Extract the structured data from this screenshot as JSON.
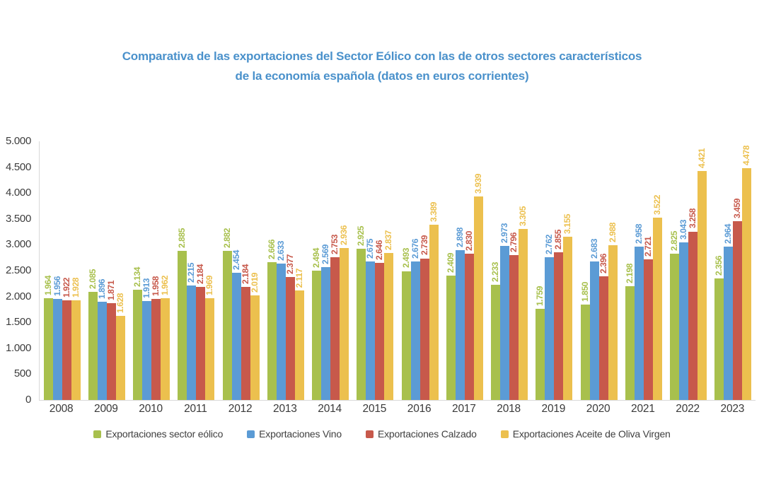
{
  "header": {
    "title_line1": "Comparativa de las exportaciones del Sector Eólico con las de otros sectores característicos",
    "title_line2": "de la economía española (datos en euros corrientes)"
  },
  "colors": {
    "title": "#4a91cb",
    "axis_line": "#d9d9d9",
    "axis_text": "#3d3d3d",
    "eolico_green": "#a8c04d",
    "vino_blue": "#5b9bd5",
    "calzado_red": "#c7594b",
    "aceite_yellow": "#ecc04e"
  },
  "chart_data": {
    "type": "bar",
    "title": "Comparativa de las exportaciones del Sector Eólico con las de otros sectores característicos de la economía española (datos en euros corrientes)",
    "categories": [
      "2008",
      "2009",
      "2010",
      "2011",
      "2012",
      "2013",
      "2014",
      "2015",
      "2016",
      "2017",
      "2018",
      "2019",
      "2020",
      "2021",
      "2022",
      "2023"
    ],
    "series": [
      {
        "name": "Exportaciones sector eólico",
        "color": "#a8c04d",
        "values": [
          1964,
          2085,
          2134,
          2885,
          2882,
          2666,
          2494,
          2925,
          2493,
          2409,
          2233,
          1759,
          1850,
          2198,
          2825,
          2356
        ]
      },
      {
        "name": "Exportaciones Vino",
        "color": "#5b9bd5",
        "values": [
          1956,
          1896,
          1913,
          2215,
          2454,
          2633,
          2569,
          2675,
          2676,
          2898,
          2973,
          2762,
          2683,
          2958,
          3043,
          2964
        ]
      },
      {
        "name": "Exportaciones Calzado",
        "color": "#c7594b",
        "values": [
          1922,
          1871,
          1958,
          2184,
          2184,
          2377,
          2753,
          2646,
          2739,
          2830,
          2796,
          2855,
          2396,
          2721,
          3258,
          3459
        ]
      },
      {
        "name": "Exportaciones Aceite de Oliva Virgen",
        "color": "#ecc04e",
        "values": [
          1928,
          1628,
          1962,
          1969,
          2019,
          2117,
          2936,
          2837,
          3389,
          3939,
          3305,
          3155,
          2988,
          3522,
          4421,
          4478
        ]
      }
    ],
    "ylim": [
      0,
      5000
    ],
    "y_ticks": [
      "0",
      "500",
      "1.000",
      "1.500",
      "2.000",
      "2.500",
      "3.000",
      "3.500",
      "4.000",
      "4.500",
      "5.000"
    ],
    "value_label_format": "thousands separator '.'",
    "value_labels_rotated": true,
    "grid": false,
    "legend_position": "bottom",
    "xlabel": "",
    "ylabel": ""
  }
}
